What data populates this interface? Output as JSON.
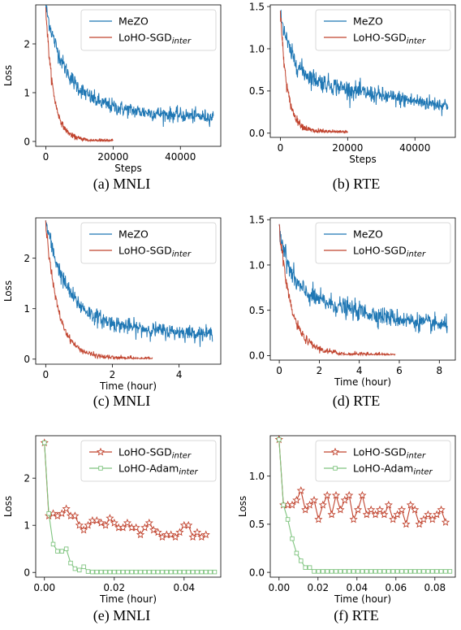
{
  "colors": {
    "mezo": "#1f77b4",
    "loho_sgd": "#c1442f",
    "loho_adam": "#7fc47f"
  },
  "legend_suffix": "inter",
  "chart_data": [
    {
      "id": "a",
      "type": "line",
      "caption": "(a) MNLI",
      "xlabel": "Steps",
      "ylabel": "Loss",
      "xlim": [
        -3000,
        52000
      ],
      "ylim": [
        -0.1,
        2.8
      ],
      "xticks": [
        {
          "v": 0,
          "l": "0"
        },
        {
          "v": 20000,
          "l": "20000"
        },
        {
          "v": 40000,
          "l": "40000"
        }
      ],
      "yticks": [
        {
          "v": 0,
          "l": "0"
        },
        {
          "v": 1,
          "l": "1"
        },
        {
          "v": 2,
          "l": "2"
        }
      ],
      "legend": "top-right",
      "series": [
        {
          "name": "MeZO",
          "key": "mezo",
          "marker": "none",
          "noisy": true,
          "n": 500,
          "x_end": 49800,
          "start": 2.75,
          "plateau": 0.85,
          "fast": 0.12,
          "tail": 0.4,
          "tail_rate": 1.5,
          "noise": 0.09
        },
        {
          "name": "LoHO-SGD",
          "sub": true,
          "key": "loho_sgd",
          "marker": "none",
          "noisy": true,
          "n": 300,
          "x_end": 20000,
          "start": 2.75,
          "plateau": 0.55,
          "fast": 0.1,
          "tail": 0.0,
          "tail_rate": 5,
          "noise": 0.07
        }
      ]
    },
    {
      "id": "b",
      "type": "line",
      "caption": "(b) RTE",
      "xlabel": "Steps",
      "ylabel": "",
      "xlim": [
        -3000,
        52000
      ],
      "ylim": [
        -0.05,
        1.52
      ],
      "xticks": [
        {
          "v": 0,
          "l": "0"
        },
        {
          "v": 20000,
          "l": "20000"
        },
        {
          "v": 40000,
          "l": "40000"
        }
      ],
      "yticks": [
        {
          "v": 0,
          "l": "0.0"
        },
        {
          "v": 0.5,
          "l": "0.5"
        },
        {
          "v": 1.0,
          "l": "1.0"
        },
        {
          "v": 1.5,
          "l": "1.5"
        }
      ],
      "legend": "top-right",
      "series": [
        {
          "name": "MeZO",
          "key": "mezo",
          "marker": "none",
          "noisy": true,
          "n": 500,
          "x_end": 49800,
          "start": 1.45,
          "plateau": 0.75,
          "fast": 0.06,
          "tail": 0.15,
          "tail_rate": 1.2,
          "noise": 0.06
        },
        {
          "name": "LoHO-SGD",
          "sub": true,
          "key": "loho_sgd",
          "marker": "none",
          "noisy": true,
          "n": 300,
          "x_end": 20000,
          "start": 1.45,
          "plateau": 0.5,
          "fast": 0.08,
          "tail": 0.0,
          "tail_rate": 6,
          "noise": 0.05
        }
      ]
    },
    {
      "id": "c",
      "type": "line",
      "caption": "(c) MNLI",
      "xlabel": "Time (hour)",
      "ylabel": "Loss",
      "xlim": [
        -0.3,
        5.25
      ],
      "ylim": [
        -0.1,
        2.8
      ],
      "xticks": [
        {
          "v": 0,
          "l": "0"
        },
        {
          "v": 2,
          "l": "2"
        },
        {
          "v": 4,
          "l": "4"
        }
      ],
      "yticks": [
        {
          "v": 0,
          "l": "0"
        },
        {
          "v": 1,
          "l": "1"
        },
        {
          "v": 2,
          "l": "2"
        }
      ],
      "legend": "top-right",
      "series": [
        {
          "name": "MeZO",
          "key": "mezo",
          "marker": "none",
          "noisy": true,
          "n": 500,
          "x_end": 5.0,
          "start": 2.75,
          "plateau": 0.85,
          "fast": 0.12,
          "tail": 0.4,
          "tail_rate": 1.5,
          "noise": 0.09
        },
        {
          "name": "LoHO-SGD",
          "sub": true,
          "key": "loho_sgd",
          "marker": "none",
          "noisy": true,
          "n": 300,
          "x_end": 3.2,
          "start": 2.75,
          "plateau": 0.55,
          "fast": 0.1,
          "tail": 0.0,
          "tail_rate": 5,
          "noise": 0.07
        }
      ]
    },
    {
      "id": "d",
      "type": "line",
      "caption": "(d) RTE",
      "xlabel": "Time (hour)",
      "ylabel": "",
      "xlim": [
        -0.45,
        8.8
      ],
      "ylim": [
        -0.05,
        1.52
      ],
      "xticks": [
        {
          "v": 0,
          "l": "0"
        },
        {
          "v": 2,
          "l": "2"
        },
        {
          "v": 4,
          "l": "4"
        },
        {
          "v": 6,
          "l": "6"
        },
        {
          "v": 8,
          "l": "8"
        }
      ],
      "yticks": [
        {
          "v": 0,
          "l": "0.0"
        },
        {
          "v": 0.5,
          "l": "0.5"
        },
        {
          "v": 1.0,
          "l": "1.0"
        },
        {
          "v": 1.5,
          "l": "1.5"
        }
      ],
      "legend": "top-right",
      "series": [
        {
          "name": "MeZO",
          "key": "mezo",
          "marker": "none",
          "noisy": true,
          "n": 500,
          "x_end": 8.4,
          "start": 1.45,
          "plateau": 0.75,
          "fast": 0.06,
          "tail": 0.15,
          "tail_rate": 1.2,
          "noise": 0.06
        },
        {
          "name": "LoHO-SGD",
          "sub": true,
          "key": "loho_sgd",
          "marker": "none",
          "noisy": true,
          "n": 300,
          "x_end": 5.8,
          "start": 1.45,
          "plateau": 0.5,
          "fast": 0.08,
          "tail": 0.0,
          "tail_rate": 6,
          "noise": 0.05
        }
      ]
    },
    {
      "id": "e",
      "type": "line",
      "caption": "(e) MNLI",
      "xlabel": "Time (hour)",
      "ylabel": "Loss",
      "xlim": [
        -0.0025,
        0.0505
      ],
      "ylim": [
        -0.1,
        2.9
      ],
      "xticks": [
        {
          "v": 0,
          "l": "0.00"
        },
        {
          "v": 0.02,
          "l": "0.02"
        },
        {
          "v": 0.04,
          "l": "0.04"
        }
      ],
      "yticks": [
        {
          "v": 0,
          "l": "0"
        },
        {
          "v": 1,
          "l": "1"
        },
        {
          "v": 2,
          "l": "2"
        }
      ],
      "legend": "top-right",
      "series": [
        {
          "name": "LoHO-SGD",
          "sub": true,
          "key": "loho_sgd",
          "marker": "star",
          "x": [
            0,
            0.00125,
            0.0025,
            0.00375,
            0.005,
            0.00625,
            0.0075,
            0.00875,
            0.01,
            0.01125,
            0.0125,
            0.01375,
            0.015,
            0.01625,
            0.0175,
            0.01875,
            0.02,
            0.02125,
            0.0225,
            0.02375,
            0.025,
            0.02625,
            0.0275,
            0.02875,
            0.03,
            0.03125,
            0.0325,
            0.03375,
            0.035,
            0.03625,
            0.0375,
            0.03875,
            0.04,
            0.04125,
            0.0425,
            0.04375,
            0.045,
            0.04625
          ],
          "y": [
            2.75,
            1.2,
            1.25,
            1.2,
            1.25,
            1.35,
            1.2,
            1.2,
            1.0,
            0.9,
            1.0,
            1.1,
            1.1,
            1.05,
            1.0,
            1.15,
            1.05,
            0.95,
            0.95,
            1.05,
            0.95,
            0.95,
            0.8,
            0.95,
            1.05,
            0.9,
            0.85,
            0.75,
            0.8,
            0.8,
            0.75,
            0.85,
            1.0,
            1.0,
            0.75,
            0.85,
            0.75,
            0.8
          ]
        },
        {
          "name": "LoHO-Adam",
          "sub": true,
          "key": "loho_adam",
          "marker": "square",
          "x": [
            0,
            0.00125,
            0.0025,
            0.00375,
            0.005,
            0.00625,
            0.0075,
            0.00875,
            0.01,
            0.01125,
            0.0125,
            0.01375,
            0.015,
            0.01625,
            0.0175,
            0.01875,
            0.02,
            0.02125,
            0.0225,
            0.02375,
            0.025,
            0.02625,
            0.0275,
            0.02875,
            0.03,
            0.03125,
            0.0325,
            0.03375,
            0.035,
            0.03625,
            0.0375,
            0.03875,
            0.04,
            0.04125,
            0.0425,
            0.04375,
            0.045,
            0.04625,
            0.0475,
            0.04875
          ],
          "y": [
            2.75,
            1.25,
            0.6,
            0.45,
            0.45,
            0.5,
            0.2,
            0.08,
            0.05,
            0.12,
            0.02,
            0.01,
            0.01,
            0.01,
            0.01,
            0.01,
            0.01,
            0.01,
            0.01,
            0.01,
            0.01,
            0.01,
            0.01,
            0.01,
            0.01,
            0.01,
            0.01,
            0.01,
            0.01,
            0.01,
            0.01,
            0.01,
            0.01,
            0.01,
            0.01,
            0.01,
            0.01,
            0.01,
            0.01,
            0.01
          ]
        }
      ]
    },
    {
      "id": "f",
      "type": "line",
      "caption": "(f) RTE",
      "xlabel": "Time (hour)",
      "ylabel": "Loss",
      "xlim": [
        -0.0045,
        0.0905
      ],
      "ylim": [
        -0.05,
        1.42
      ],
      "xticks": [
        {
          "v": 0,
          "l": "0.00"
        },
        {
          "v": 0.02,
          "l": "0.02"
        },
        {
          "v": 0.04,
          "l": "0.04"
        },
        {
          "v": 0.06,
          "l": "0.06"
        },
        {
          "v": 0.08,
          "l": "0.08"
        }
      ],
      "yticks": [
        {
          "v": 0,
          "l": "0.0"
        },
        {
          "v": 0.5,
          "l": "0.5"
        },
        {
          "v": 1.0,
          "l": "1.0"
        }
      ],
      "legend": "top-right",
      "series": [
        {
          "name": "LoHO-SGD",
          "sub": true,
          "key": "loho_sgd",
          "marker": "star",
          "x": [
            0,
            0.00225,
            0.0045,
            0.00675,
            0.009,
            0.01125,
            0.0135,
            0.01575,
            0.018,
            0.02025,
            0.0225,
            0.02475,
            0.027,
            0.02925,
            0.0315,
            0.03375,
            0.036,
            0.03825,
            0.0405,
            0.04275,
            0.045,
            0.04725,
            0.0495,
            0.05175,
            0.054,
            0.05625,
            0.0585,
            0.06075,
            0.063,
            0.06525,
            0.0675,
            0.06975,
            0.072,
            0.07425,
            0.0765,
            0.07875,
            0.081,
            0.08325,
            0.0855
          ],
          "y": [
            1.38,
            0.7,
            0.7,
            0.7,
            0.75,
            0.85,
            0.65,
            0.7,
            0.75,
            0.55,
            0.7,
            0.8,
            0.6,
            0.8,
            0.65,
            0.75,
            0.8,
            0.55,
            0.65,
            0.8,
            0.6,
            0.65,
            0.6,
            0.65,
            0.6,
            0.7,
            0.55,
            0.6,
            0.65,
            0.5,
            0.7,
            0.65,
            0.5,
            0.55,
            0.6,
            0.55,
            0.6,
            0.65,
            0.52
          ]
        },
        {
          "name": "LoHO-Adam",
          "sub": true,
          "key": "loho_adam",
          "marker": "square",
          "x": [
            0,
            0.00225,
            0.0045,
            0.00675,
            0.009,
            0.01125,
            0.0135,
            0.01575,
            0.018,
            0.02025,
            0.0225,
            0.02475,
            0.027,
            0.02925,
            0.0315,
            0.03375,
            0.036,
            0.03825,
            0.0405,
            0.04275,
            0.045,
            0.04725,
            0.0495,
            0.05175,
            0.054,
            0.05625,
            0.0585,
            0.06075,
            0.063,
            0.06525,
            0.0675,
            0.06975,
            0.072,
            0.07425,
            0.0765,
            0.07875,
            0.081,
            0.08325,
            0.0855,
            0.08775
          ],
          "y": [
            1.38,
            0.7,
            0.55,
            0.35,
            0.2,
            0.12,
            0.05,
            0.05,
            0.01,
            0.01,
            0.01,
            0.01,
            0.01,
            0.01,
            0.01,
            0.01,
            0.01,
            0.01,
            0.01,
            0.01,
            0.01,
            0.01,
            0.01,
            0.01,
            0.01,
            0.01,
            0.01,
            0.01,
            0.01,
            0.01,
            0.01,
            0.01,
            0.01,
            0.01,
            0.01,
            0.01,
            0.01,
            0.01,
            0.01,
            0.01
          ]
        }
      ]
    }
  ]
}
